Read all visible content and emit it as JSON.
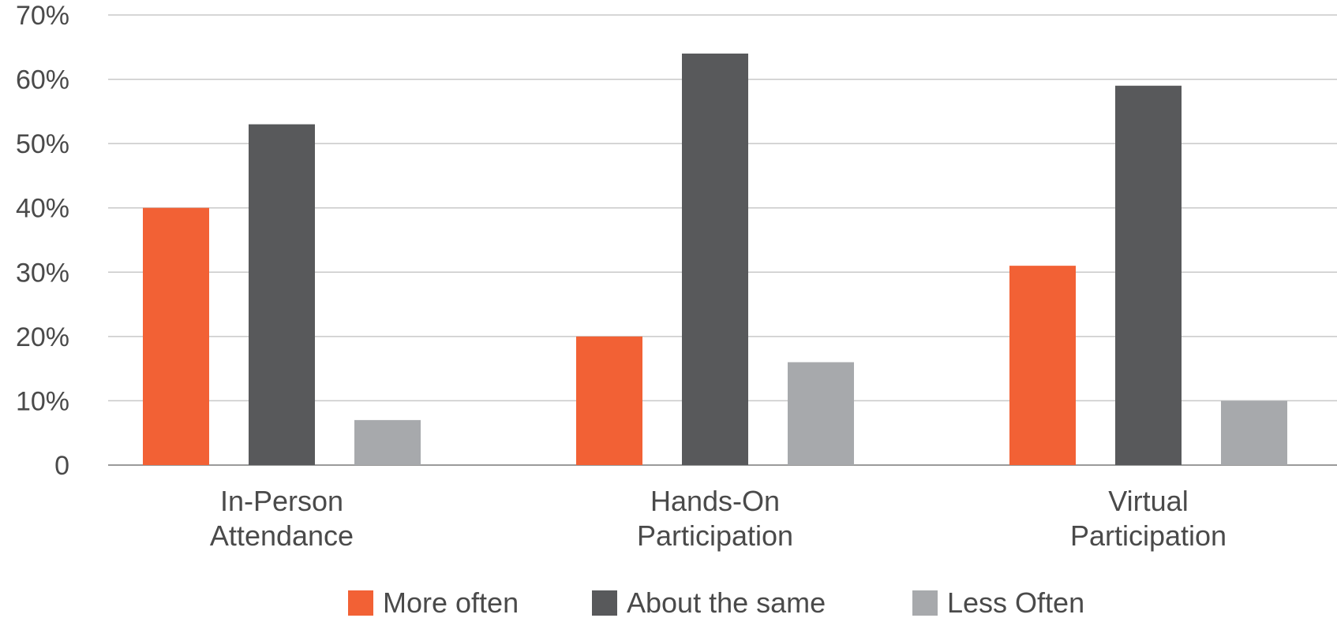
{
  "chart_data": {
    "type": "bar",
    "title": "",
    "xlabel": "",
    "ylabel": "",
    "categories": [
      [
        "In-Person",
        "Attendance"
      ],
      [
        "Hands-On",
        "Participation"
      ],
      [
        "Virtual",
        "Participation"
      ]
    ],
    "series": [
      {
        "name": "More often",
        "color": "#f26135",
        "values": [
          40,
          20,
          31
        ]
      },
      {
        "name": "About the same",
        "color": "#58595b",
        "values": [
          53,
          64,
          59
        ]
      },
      {
        "name": "Less Often",
        "color": "#a7a9ac",
        "values": [
          7,
          16,
          10
        ]
      }
    ],
    "ylim": [
      0,
      70
    ],
    "yticks": [
      0,
      10,
      20,
      30,
      40,
      50,
      60,
      70
    ],
    "ytick_labels": [
      "0",
      "10%",
      "20%",
      "30%",
      "40%",
      "50%",
      "60%",
      "70%"
    ],
    "grid": true,
    "gridline_color": "#c8c8c8",
    "legend_position": "bottom"
  }
}
